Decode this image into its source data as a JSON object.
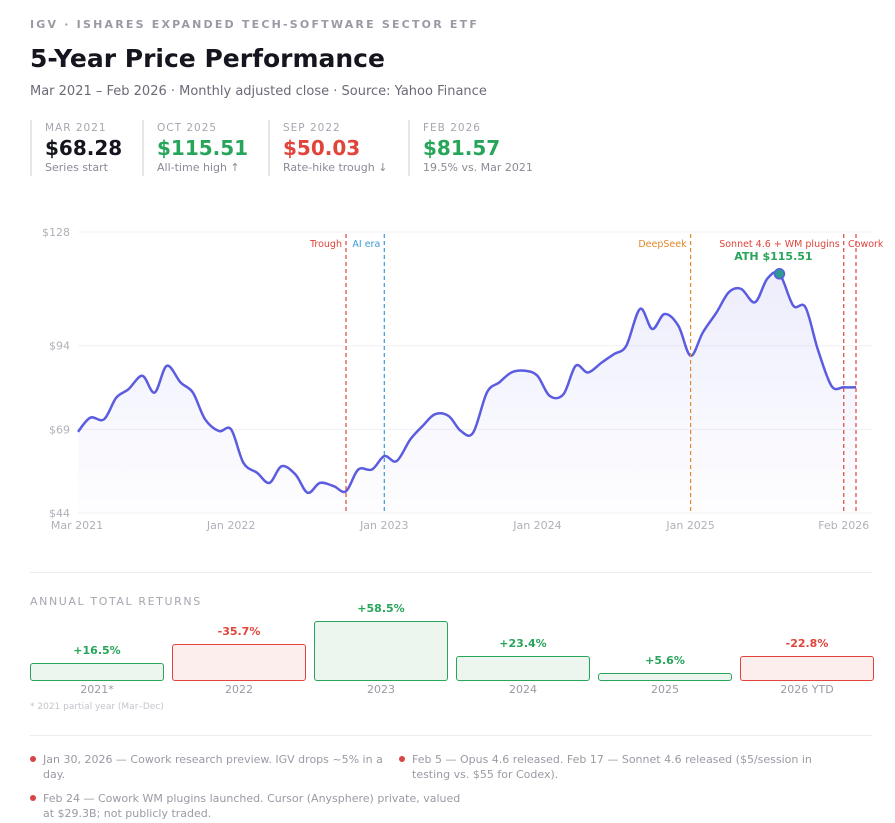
{
  "header": {
    "kicker": "IGV · ISHARES EXPANDED TECH-SOFTWARE SECTOR ETF",
    "title": "5-Year Price Performance",
    "subtitle": "Mar 2021 – Feb 2026 · Monthly adjusted close · Source: Yahoo Finance"
  },
  "stats": [
    {
      "label": "MAR 2021",
      "value": "$68.28",
      "note": "Series start",
      "color": "#15151f"
    },
    {
      "label": "OCT 2025",
      "value": "$115.51",
      "note": "All-time high ↑",
      "color": "#27a55a"
    },
    {
      "label": "SEP 2022",
      "value": "$50.03",
      "note": "Rate-hike trough ↓",
      "color": "#e0443a"
    },
    {
      "label": "FEB 2026",
      "value": "$81.57",
      "note": "19.5% vs. Mar 2021",
      "color": "#27a55a"
    }
  ],
  "chart_data": {
    "type": "line",
    "title": "5-Year Price Performance",
    "xlabel": "",
    "ylabel": "",
    "ylim": [
      44,
      128
    ],
    "yticks": [
      128,
      94,
      69,
      44
    ],
    "ytick_labels": [
      "$128",
      "$94",
      "$69",
      "$44"
    ],
    "xlim": [
      2021.0,
      2026.08
    ],
    "xticks": [
      2021.0,
      2022.0,
      2023.0,
      2024.0,
      2025.0,
      2026.0
    ],
    "xtick_labels": [
      "Mar 2021",
      "Jan 2022",
      "Jan 2023",
      "Jan 2024",
      "Jan 2025",
      "Feb 2026"
    ],
    "series": [
      {
        "name": "IGV",
        "color": "#5b5ce0",
        "x": [
          2021.0,
          2021.08,
          2021.17,
          2021.25,
          2021.33,
          2021.42,
          2021.5,
          2021.58,
          2021.67,
          2021.75,
          2021.83,
          2021.92,
          2022.0,
          2022.08,
          2022.17,
          2022.25,
          2022.33,
          2022.42,
          2022.5,
          2022.58,
          2022.67,
          2022.75,
          2022.83,
          2022.92,
          2023.0,
          2023.08,
          2023.17,
          2023.25,
          2023.33,
          2023.42,
          2023.5,
          2023.58,
          2023.67,
          2023.75,
          2023.83,
          2023.92,
          2024.0,
          2024.08,
          2024.17,
          2024.25,
          2024.33,
          2024.42,
          2024.5,
          2024.58,
          2024.67,
          2024.75,
          2024.83,
          2024.92,
          2025.0,
          2025.08,
          2025.17,
          2025.25,
          2025.33,
          2025.42,
          2025.5,
          2025.58,
          2025.67,
          2025.75,
          2025.83,
          2025.92,
          2026.0,
          2026.08
        ],
        "values": [
          68.28,
          72.5,
          72.0,
          78.5,
          81.0,
          85.0,
          80.0,
          88.0,
          83.0,
          80.0,
          72.0,
          68.5,
          69.0,
          59.0,
          56.0,
          53.0,
          58.0,
          55.5,
          50.03,
          53.0,
          52.0,
          50.5,
          57.0,
          57.0,
          61.0,
          59.5,
          66.0,
          70.0,
          73.5,
          73.0,
          68.5,
          68.0,
          80.0,
          83.0,
          86.0,
          86.5,
          85.0,
          79.0,
          79.5,
          88.0,
          86.0,
          89.0,
          91.5,
          94.0,
          105.0,
          99.0,
          103.5,
          100.0,
          91.0,
          98.0,
          104.0,
          110.0,
          111.0,
          107.0,
          114.0,
          115.51,
          106.0,
          105.5,
          93.0,
          82.0,
          81.57,
          81.57
        ]
      }
    ],
    "ath": {
      "x": 2025.58,
      "value": 115.51,
      "label": "ATH $115.51"
    },
    "events": [
      {
        "x": 2022.75,
        "label": "Trough",
        "color": "#e0443a"
      },
      {
        "x": 2023.0,
        "label": "AI era",
        "color": "#3a9ad9"
      },
      {
        "x": 2025.0,
        "label": "DeepSeek",
        "color": "#e08a2a"
      },
      {
        "x": 2026.0,
        "label": "Sonnet 4.6 + WM plugins",
        "color": "#e0443a"
      },
      {
        "x": 2026.08,
        "label": "Cowork",
        "color": "#e0443a"
      }
    ]
  },
  "annual": {
    "title": "ANNUAL TOTAL RETURNS",
    "note": "* 2021 partial year (Mar–Dec)",
    "items": [
      {
        "year": "2021*",
        "ret": "+16.5%",
        "value": 16.5
      },
      {
        "year": "2022",
        "ret": "-35.7%",
        "value": -35.7
      },
      {
        "year": "2023",
        "ret": "+58.5%",
        "value": 58.5
      },
      {
        "year": "2024",
        "ret": "+23.4%",
        "value": 23.4
      },
      {
        "year": "2025",
        "ret": "+5.6%",
        "value": 5.6
      },
      {
        "year": "2026 YTD",
        "ret": "-22.8%",
        "value": -22.8
      }
    ]
  },
  "events_notes": [
    {
      "text": "Jan 30, 2026 — Cowork research preview. IGV drops ~5% in a day."
    },
    {
      "text": "Feb 5 — Opus 4.6 released. Feb 17 — Sonnet 4.6 released ($5/session in testing vs. $55 for Codex)."
    },
    {
      "text": "Feb 24 — Cowork WM plugins launched. Cursor (Anysphere) private, valued at $29.3B; not publicly traded."
    }
  ],
  "colors": {
    "positive": "#27a55a",
    "negative": "#e0443a",
    "line": "#5b5ce0",
    "pos_fill": "#ecf6ee",
    "neg_fill": "#fdeeee"
  }
}
